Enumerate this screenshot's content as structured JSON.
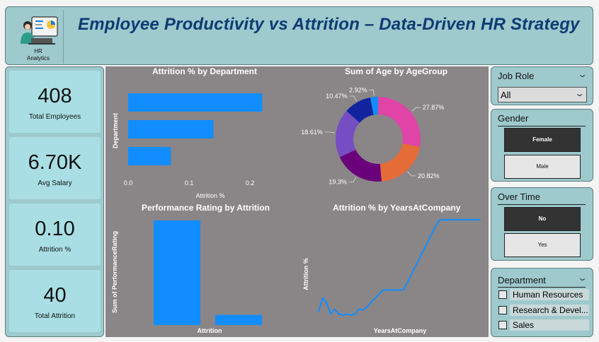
{
  "header": {
    "title": "Employee Productivity vs Attrition – Data-Driven HR Strategy",
    "logo_caption_1": "HR",
    "logo_caption_2": "Analytics"
  },
  "kpis": [
    {
      "value": "408",
      "label": "Total Employees"
    },
    {
      "value": "6.70K",
      "label": "Avg Salary"
    },
    {
      "value": "0.10",
      "label": "Attrition %"
    },
    {
      "value": "40",
      "label": "Total Attrition"
    }
  ],
  "slicers": {
    "job_role": {
      "title": "Job Role",
      "selected": "All"
    },
    "gender": {
      "title": "Gender",
      "options": [
        "Female",
        "Male"
      ],
      "selected": "Female"
    },
    "over_time": {
      "title": "Over Time",
      "options": [
        "No",
        "Yes"
      ],
      "selected": "No"
    },
    "department": {
      "title": "Department",
      "options": [
        "Human Resources",
        "Research & Devel...",
        "Sales"
      ]
    }
  },
  "chart_data": [
    {
      "type": "bar",
      "orientation": "horizontal",
      "title": "Attrition % by Department",
      "xlabel": "Attrition %",
      "ylabel": "Department",
      "values": [
        0.22,
        0.14,
        0.07
      ],
      "xticks": [
        "0.0",
        "0.1",
        "0.2"
      ],
      "xlim": [
        0,
        0.23
      ],
      "color": "#118dff"
    },
    {
      "type": "pie",
      "donut": true,
      "title": "Sum of Age by AgeGroup",
      "slices": [
        {
          "value": 27.87,
          "label": "27.87%",
          "color": "#e044a7"
        },
        {
          "value": 20.82,
          "label": "20.82%",
          "color": "#e66c37"
        },
        {
          "value": 19.3,
          "label": "19.3%",
          "color": "#6b007b"
        },
        {
          "value": 18.61,
          "label": "18.61%",
          "color": "#744ec2"
        },
        {
          "value": 10.47,
          "label": "10.47%",
          "color": "#12239e"
        },
        {
          "value": 2.92,
          "label": "2.92%",
          "color": "#118dff"
        }
      ]
    },
    {
      "type": "bar",
      "title": "Performance Rating by Attrition",
      "xlabel": "Attrition",
      "ylabel": "Sum of PerformanceRating",
      "values": [
        1130,
        110
      ],
      "ylim": [
        0,
        1160
      ],
      "color": "#118dff"
    },
    {
      "type": "line",
      "title": "Attrition % by YearsAtCompany",
      "xlabel": "YearsAtCompany",
      "ylabel": "Attrition %",
      "x": [
        0,
        1,
        2,
        3,
        4,
        5,
        6,
        7,
        8,
        9,
        10,
        11,
        12,
        13,
        14,
        15,
        16,
        17,
        18,
        19,
        20,
        21,
        22,
        23,
        24,
        25,
        26,
        27,
        28,
        29,
        30,
        31,
        32,
        33,
        34,
        35,
        36,
        37,
        38,
        39,
        40
      ],
      "y": [
        0.08,
        0.22,
        0.17,
        0.06,
        0.11,
        0.06,
        0.05,
        0.06,
        0.05,
        0.06,
        0.11,
        0.1,
        0.13,
        0.18,
        0.22,
        0.26,
        0.3,
        0.3,
        0.3,
        0.3,
        0.3,
        0.3,
        0.38,
        0.46,
        0.54,
        0.62,
        0.7,
        0.78,
        0.86,
        0.94,
        1.0,
        1.0,
        1.0,
        1.0,
        1.0,
        1.0,
        1.0,
        1.0,
        1.0,
        1.0,
        1.0
      ],
      "ylim": [
        0,
        1.02
      ],
      "color": "#118dff"
    }
  ]
}
